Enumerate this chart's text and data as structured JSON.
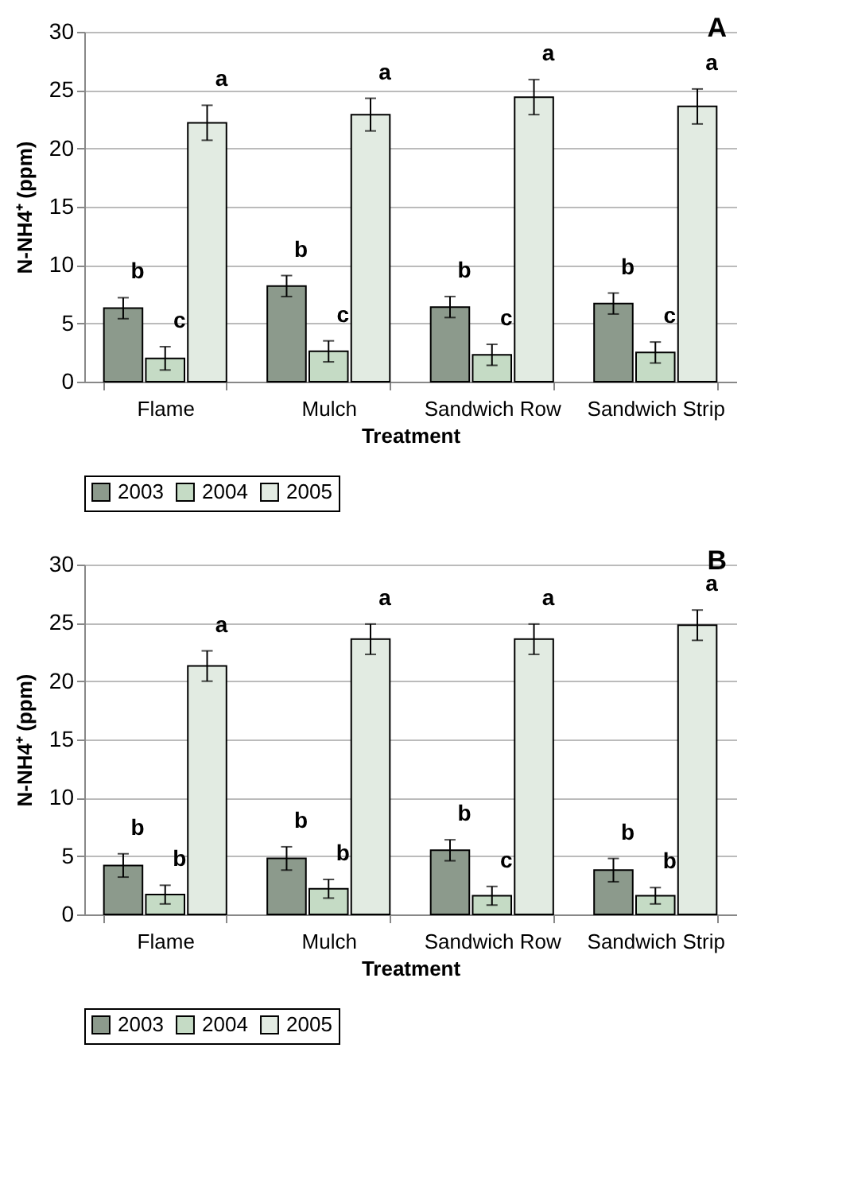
{
  "chart_data": [
    {
      "type": "bar",
      "title": "A",
      "xlabel": "Treatment",
      "ylabel": "N-NH4⁺ (ppm)",
      "categories": [
        "Flame",
        "Mulch",
        "Sandwich Row",
        "Sandwich Strip"
      ],
      "series": [
        {
          "name": "2003",
          "color": "#8c9a8c",
          "values": [
            6.3,
            8.2,
            6.4,
            6.7
          ],
          "errors": [
            0.9,
            0.9,
            0.9,
            0.9
          ],
          "value_labels": [
            "b",
            "b",
            "b",
            "b"
          ]
        },
        {
          "name": "2004",
          "color": "#c5dbc5",
          "values": [
            2.0,
            2.6,
            2.3,
            2.5
          ],
          "errors": [
            1.0,
            0.9,
            0.9,
            0.9
          ],
          "value_labels": [
            "c",
            "c",
            "c",
            "c"
          ]
        },
        {
          "name": "2005",
          "color": "#e2ebe2",
          "values": [
            22.2,
            22.9,
            24.4,
            23.6
          ],
          "errors": [
            1.5,
            1.4,
            1.5,
            1.5
          ],
          "value_labels": [
            "a",
            "a",
            "a",
            "a"
          ]
        }
      ],
      "ylim": [
        0,
        30
      ],
      "yticks": [
        0,
        5,
        10,
        15,
        20,
        25,
        30
      ],
      "grid": "y",
      "legend": "bottom"
    },
    {
      "type": "bar",
      "title": "B",
      "xlabel": "Treatment",
      "ylabel": "N-NH4⁺ (ppm)",
      "categories": [
        "Flame",
        "Mulch",
        "Sandwich Row",
        "Sandwich Strip"
      ],
      "series": [
        {
          "name": "2003",
          "color": "#8c9a8c",
          "values": [
            4.2,
            4.8,
            5.5,
            3.8
          ],
          "errors": [
            1.0,
            1.0,
            0.9,
            1.0
          ],
          "value_labels": [
            "b",
            "b",
            "b",
            "b"
          ]
        },
        {
          "name": "2004",
          "color": "#c5dbc5",
          "values": [
            1.7,
            2.2,
            1.6,
            1.6
          ],
          "errors": [
            0.8,
            0.8,
            0.8,
            0.7
          ],
          "value_labels": [
            "b",
            "b",
            "c",
            "b"
          ]
        },
        {
          "name": "2005",
          "color": "#e2ebe2",
          "values": [
            21.3,
            23.6,
            23.6,
            24.8
          ],
          "errors": [
            1.3,
            1.3,
            1.3,
            1.3
          ],
          "value_labels": [
            "a",
            "a",
            "a",
            "a"
          ]
        }
      ],
      "ylim": [
        0,
        30
      ],
      "yticks": [
        0,
        5,
        10,
        15,
        20,
        25,
        30
      ],
      "grid": "y",
      "legend": "bottom"
    }
  ]
}
